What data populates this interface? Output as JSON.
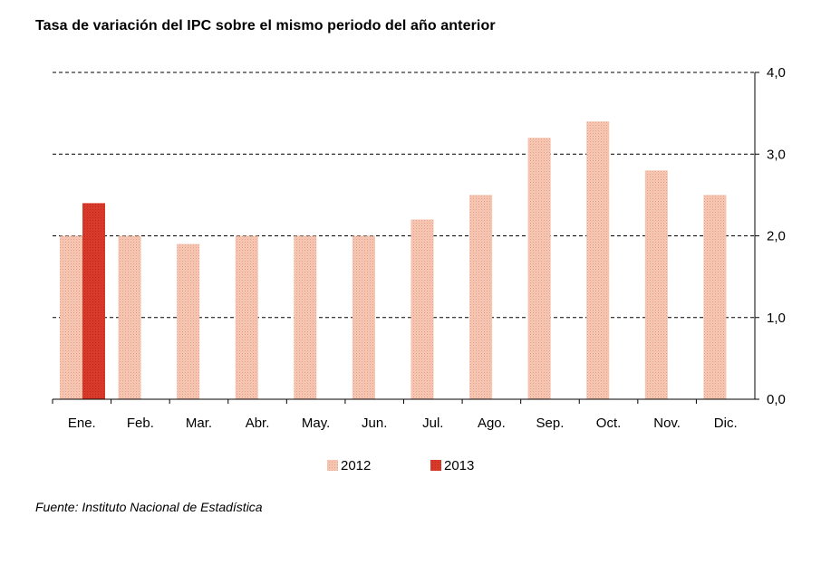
{
  "page": {
    "title": "Tasa de variación del IPC sobre el mismo periodo del año anterior",
    "source": "Fuente: Instituto Nacional de Estadística"
  },
  "colors": {
    "series_2012": "#f2b8a2",
    "series_2013": "#d93a2b",
    "gridline": "#000000",
    "axis": "#000000"
  },
  "chart_data": {
    "type": "bar",
    "title": "Tasa de variación del IPC sobre el mismo periodo del año anterior",
    "categories": [
      "Ene.",
      "Feb.",
      "Mar.",
      "Abr.",
      "May.",
      "Jun.",
      "Jul.",
      "Ago.",
      "Sep.",
      "Oct.",
      "Nov.",
      "Dic."
    ],
    "series": [
      {
        "name": "2012",
        "color": "#f2b8a2",
        "values": [
          2.0,
          2.0,
          1.9,
          2.0,
          2.0,
          2.0,
          2.2,
          2.5,
          3.2,
          3.4,
          2.8,
          2.5
        ]
      },
      {
        "name": "2013",
        "color": "#d93a2b",
        "values": [
          2.4,
          null,
          null,
          null,
          null,
          null,
          null,
          null,
          null,
          null,
          null,
          null
        ]
      }
    ],
    "yticks": [
      "0,0",
      "1,0",
      "2,0",
      "3,0",
      "4,0"
    ],
    "ylim": [
      0,
      4
    ],
    "yaxis_position": "right",
    "grid": "horizontal dashed",
    "legend_position": "bottom"
  }
}
